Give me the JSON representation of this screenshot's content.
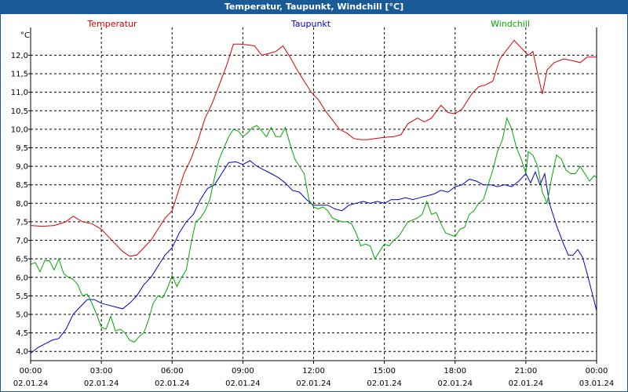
{
  "window": {
    "title": "Temperatur, Taupunkt, Windchill [°C]"
  },
  "chart_data": {
    "type": "line",
    "title": "Temperatur, Taupunkt, Windchill [°C]",
    "ylabel": "°C",
    "ylim": [
      3.75,
      12.75
    ],
    "xlim": [
      0,
      24
    ],
    "yticks": [
      "4,0",
      "4,5",
      "5,0",
      "5,5",
      "6,0",
      "6,5",
      "7,0",
      "7,5",
      "8,0",
      "8,5",
      "9,0",
      "9,5",
      "10,0",
      "10,5",
      "11,0",
      "11,5",
      "12,0"
    ],
    "xticks": [
      {
        "time": "00:00",
        "date": "02.01.24"
      },
      {
        "time": "03:00",
        "date": "02.01.24"
      },
      {
        "time": "06:00",
        "date": "02.01.24"
      },
      {
        "time": "09:00",
        "date": "02.01.24"
      },
      {
        "time": "12:00",
        "date": "02.01.24"
      },
      {
        "time": "15:00",
        "date": "02.01.24"
      },
      {
        "time": "18:00",
        "date": "02.01.24"
      },
      {
        "time": "21:00",
        "date": "02.01.24"
      },
      {
        "time": "00:00",
        "date": "03.01.24"
      }
    ],
    "grid": true,
    "legend_position": "top",
    "series": [
      {
        "name": "Temperatur",
        "color": "#dd0000",
        "points": [
          [
            0.0,
            7.4
          ],
          [
            0.5,
            7.38
          ],
          [
            1.0,
            7.4
          ],
          [
            1.5,
            7.5
          ],
          [
            1.8,
            7.65
          ],
          [
            2.2,
            7.5
          ],
          [
            2.6,
            7.45
          ],
          [
            3.0,
            7.3
          ],
          [
            3.3,
            7.1
          ],
          [
            3.6,
            6.9
          ],
          [
            3.9,
            6.7
          ],
          [
            4.2,
            6.57
          ],
          [
            4.5,
            6.6
          ],
          [
            4.8,
            6.8
          ],
          [
            5.1,
            7.0
          ],
          [
            5.4,
            7.3
          ],
          [
            5.7,
            7.6
          ],
          [
            6.0,
            7.8
          ],
          [
            6.2,
            8.2
          ],
          [
            6.5,
            8.8
          ],
          [
            6.8,
            9.2
          ],
          [
            7.1,
            9.7
          ],
          [
            7.4,
            10.3
          ],
          [
            7.7,
            10.7
          ],
          [
            8.0,
            11.2
          ],
          [
            8.3,
            11.7
          ],
          [
            8.6,
            12.3
          ],
          [
            8.9,
            12.3
          ],
          [
            9.2,
            12.28
          ],
          [
            9.5,
            12.25
          ],
          [
            9.8,
            12.0
          ],
          [
            10.1,
            12.05
          ],
          [
            10.4,
            12.1
          ],
          [
            10.7,
            12.25
          ],
          [
            11.0,
            11.95
          ],
          [
            11.3,
            11.6
          ],
          [
            11.6,
            11.3
          ],
          [
            11.9,
            11.0
          ],
          [
            12.2,
            10.8
          ],
          [
            12.5,
            10.5
          ],
          [
            12.8,
            10.25
          ],
          [
            13.1,
            10.0
          ],
          [
            13.4,
            9.9
          ],
          [
            13.7,
            9.75
          ],
          [
            14.0,
            9.72
          ],
          [
            14.3,
            9.72
          ],
          [
            14.6,
            9.75
          ],
          [
            15.0,
            9.78
          ],
          [
            15.4,
            9.8
          ],
          [
            15.7,
            9.85
          ],
          [
            16.0,
            10.15
          ],
          [
            16.4,
            10.3
          ],
          [
            16.7,
            10.2
          ],
          [
            17.0,
            10.3
          ],
          [
            17.4,
            10.65
          ],
          [
            17.7,
            10.45
          ],
          [
            18.0,
            10.42
          ],
          [
            18.3,
            10.55
          ],
          [
            18.7,
            10.95
          ],
          [
            19.0,
            11.15
          ],
          [
            19.3,
            11.2
          ],
          [
            19.6,
            11.3
          ],
          [
            19.9,
            11.9
          ],
          [
            20.2,
            12.15
          ],
          [
            20.5,
            12.4
          ],
          [
            20.8,
            12.2
          ],
          [
            21.1,
            12.0
          ],
          [
            21.3,
            12.1
          ],
          [
            21.5,
            11.5
          ],
          [
            21.7,
            10.95
          ],
          [
            21.9,
            11.6
          ],
          [
            22.2,
            11.8
          ],
          [
            22.6,
            11.9
          ],
          [
            23.0,
            11.85
          ],
          [
            23.3,
            11.8
          ],
          [
            23.6,
            11.95
          ],
          [
            24.0,
            11.95
          ]
        ]
      },
      {
        "name": "Taupunkt",
        "color": "#0000cc",
        "points": [
          [
            0.0,
            3.95
          ],
          [
            0.3,
            4.1
          ],
          [
            0.6,
            4.2
          ],
          [
            0.9,
            4.3
          ],
          [
            1.2,
            4.35
          ],
          [
            1.5,
            4.6
          ],
          [
            1.8,
            5.0
          ],
          [
            2.1,
            5.2
          ],
          [
            2.4,
            5.4
          ],
          [
            2.7,
            5.4
          ],
          [
            3.0,
            5.3
          ],
          [
            3.3,
            5.25
          ],
          [
            3.6,
            5.2
          ],
          [
            3.9,
            5.15
          ],
          [
            4.2,
            5.3
          ],
          [
            4.5,
            5.5
          ],
          [
            4.8,
            5.8
          ],
          [
            5.1,
            6.0
          ],
          [
            5.4,
            6.3
          ],
          [
            5.7,
            6.6
          ],
          [
            6.0,
            6.8
          ],
          [
            6.3,
            7.2
          ],
          [
            6.6,
            7.5
          ],
          [
            6.9,
            7.7
          ],
          [
            7.2,
            8.1
          ],
          [
            7.5,
            8.4
          ],
          [
            7.8,
            8.5
          ],
          [
            8.1,
            8.8
          ],
          [
            8.4,
            9.1
          ],
          [
            8.7,
            9.12
          ],
          [
            9.0,
            9.05
          ],
          [
            9.3,
            9.15
          ],
          [
            9.6,
            9.0
          ],
          [
            9.9,
            8.9
          ],
          [
            10.2,
            8.8
          ],
          [
            10.5,
            8.7
          ],
          [
            10.8,
            8.55
          ],
          [
            11.1,
            8.35
          ],
          [
            11.4,
            8.3
          ],
          [
            11.7,
            8.1
          ],
          [
            12.0,
            7.95
          ],
          [
            12.3,
            7.95
          ],
          [
            12.6,
            7.95
          ],
          [
            12.9,
            7.85
          ],
          [
            13.2,
            7.8
          ],
          [
            13.5,
            7.95
          ],
          [
            13.8,
            8.0
          ],
          [
            14.1,
            8.05
          ],
          [
            14.4,
            8.0
          ],
          [
            14.7,
            8.05
          ],
          [
            15.0,
            8.0
          ],
          [
            15.3,
            8.1
          ],
          [
            15.6,
            8.1
          ],
          [
            15.9,
            8.15
          ],
          [
            16.2,
            8.1
          ],
          [
            16.5,
            8.15
          ],
          [
            16.8,
            8.2
          ],
          [
            17.1,
            8.25
          ],
          [
            17.4,
            8.35
          ],
          [
            17.7,
            8.3
          ],
          [
            18.0,
            8.45
          ],
          [
            18.3,
            8.5
          ],
          [
            18.6,
            8.65
          ],
          [
            18.9,
            8.6
          ],
          [
            19.2,
            8.5
          ],
          [
            19.5,
            8.5
          ],
          [
            19.8,
            8.45
          ],
          [
            20.1,
            8.5
          ],
          [
            20.4,
            8.45
          ],
          [
            20.7,
            8.6
          ],
          [
            21.0,
            8.8
          ],
          [
            21.2,
            8.55
          ],
          [
            21.4,
            8.85
          ],
          [
            21.6,
            8.5
          ],
          [
            21.8,
            8.8
          ],
          [
            22.0,
            8.0
          ],
          [
            22.3,
            7.4
          ],
          [
            22.6,
            6.9
          ],
          [
            22.8,
            6.6
          ],
          [
            23.0,
            6.6
          ],
          [
            23.2,
            6.75
          ],
          [
            23.4,
            6.55
          ],
          [
            23.6,
            6.1
          ],
          [
            23.8,
            5.6
          ],
          [
            24.0,
            5.1
          ]
        ]
      },
      {
        "name": "Windchill",
        "color": "#00aa00",
        "points": [
          [
            0.0,
            6.35
          ],
          [
            0.2,
            6.4
          ],
          [
            0.4,
            6.15
          ],
          [
            0.6,
            6.45
          ],
          [
            0.8,
            6.45
          ],
          [
            1.0,
            6.2
          ],
          [
            1.2,
            6.5
          ],
          [
            1.4,
            6.1
          ],
          [
            1.6,
            6.0
          ],
          [
            1.8,
            5.95
          ],
          [
            2.0,
            5.8
          ],
          [
            2.2,
            5.5
          ],
          [
            2.4,
            5.55
          ],
          [
            2.6,
            5.3
          ],
          [
            2.8,
            5.0
          ],
          [
            3.0,
            4.65
          ],
          [
            3.2,
            4.6
          ],
          [
            3.4,
            4.95
          ],
          [
            3.6,
            4.55
          ],
          [
            3.8,
            4.6
          ],
          [
            4.0,
            4.5
          ],
          [
            4.2,
            4.3
          ],
          [
            4.4,
            4.25
          ],
          [
            4.6,
            4.4
          ],
          [
            4.8,
            4.5
          ],
          [
            5.0,
            4.85
          ],
          [
            5.2,
            5.3
          ],
          [
            5.4,
            5.5
          ],
          [
            5.6,
            5.45
          ],
          [
            5.8,
            5.7
          ],
          [
            6.0,
            6.05
          ],
          [
            6.2,
            5.75
          ],
          [
            6.4,
            6.0
          ],
          [
            6.6,
            6.2
          ],
          [
            6.8,
            6.9
          ],
          [
            7.0,
            7.5
          ],
          [
            7.2,
            7.6
          ],
          [
            7.4,
            7.8
          ],
          [
            7.6,
            8.1
          ],
          [
            7.8,
            8.7
          ],
          [
            8.0,
            9.2
          ],
          [
            8.2,
            9.5
          ],
          [
            8.4,
            9.8
          ],
          [
            8.6,
            10.0
          ],
          [
            8.8,
            9.95
          ],
          [
            9.0,
            9.8
          ],
          [
            9.2,
            9.9
          ],
          [
            9.4,
            10.05
          ],
          [
            9.6,
            10.1
          ],
          [
            9.8,
            9.95
          ],
          [
            10.0,
            9.8
          ],
          [
            10.2,
            10.05
          ],
          [
            10.4,
            9.8
          ],
          [
            10.6,
            9.8
          ],
          [
            10.8,
            10.05
          ],
          [
            11.0,
            9.6
          ],
          [
            11.2,
            9.2
          ],
          [
            11.4,
            9.0
          ],
          [
            11.6,
            8.8
          ],
          [
            11.8,
            8.1
          ],
          [
            12.0,
            7.9
          ],
          [
            12.2,
            7.85
          ],
          [
            12.4,
            7.9
          ],
          [
            12.6,
            7.8
          ],
          [
            12.8,
            7.6
          ],
          [
            13.0,
            7.55
          ],
          [
            13.2,
            7.5
          ],
          [
            13.4,
            7.5
          ],
          [
            13.6,
            7.45
          ],
          [
            13.8,
            7.2
          ],
          [
            14.0,
            6.85
          ],
          [
            14.2,
            6.9
          ],
          [
            14.4,
            6.85
          ],
          [
            14.6,
            6.5
          ],
          [
            14.8,
            6.7
          ],
          [
            15.0,
            6.9
          ],
          [
            15.2,
            6.85
          ],
          [
            15.4,
            7.0
          ],
          [
            15.6,
            7.1
          ],
          [
            15.8,
            7.3
          ],
          [
            16.0,
            7.5
          ],
          [
            16.2,
            7.55
          ],
          [
            16.4,
            7.6
          ],
          [
            16.6,
            7.7
          ],
          [
            16.8,
            8.05
          ],
          [
            17.0,
            7.7
          ],
          [
            17.2,
            7.75
          ],
          [
            17.4,
            7.45
          ],
          [
            17.6,
            7.2
          ],
          [
            17.8,
            7.15
          ],
          [
            18.0,
            7.1
          ],
          [
            18.2,
            7.3
          ],
          [
            18.4,
            7.35
          ],
          [
            18.6,
            7.7
          ],
          [
            18.8,
            7.8
          ],
          [
            19.0,
            8.0
          ],
          [
            19.2,
            8.1
          ],
          [
            19.4,
            8.5
          ],
          [
            19.6,
            8.9
          ],
          [
            19.8,
            9.4
          ],
          [
            20.0,
            9.7
          ],
          [
            20.2,
            10.3
          ],
          [
            20.4,
            10.0
          ],
          [
            20.6,
            9.5
          ],
          [
            20.8,
            9.2
          ],
          [
            21.0,
            8.8
          ],
          [
            21.1,
            9.4
          ],
          [
            21.3,
            9.3
          ],
          [
            21.5,
            9.0
          ],
          [
            21.7,
            8.3
          ],
          [
            21.9,
            8.0
          ],
          [
            22.1,
            8.7
          ],
          [
            22.3,
            9.3
          ],
          [
            22.5,
            9.2
          ],
          [
            22.7,
            8.9
          ],
          [
            22.9,
            8.8
          ],
          [
            23.1,
            8.8
          ],
          [
            23.3,
            9.0
          ],
          [
            23.5,
            8.8
          ],
          [
            23.7,
            8.6
          ],
          [
            23.9,
            8.75
          ],
          [
            24.0,
            8.7
          ]
        ]
      }
    ]
  }
}
